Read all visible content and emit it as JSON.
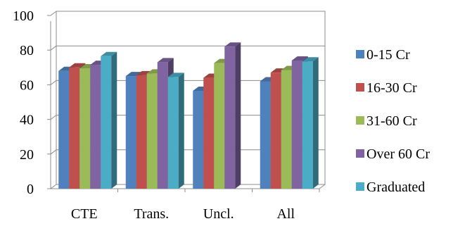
{
  "chart_data": {
    "type": "bar",
    "categories": [
      "CTE",
      "Trans.",
      "Uncl.",
      "All"
    ],
    "series": [
      {
        "name": "0-15 Cr",
        "color": "#4F81BD",
        "values": [
          68,
          65,
          56.5,
          62
        ]
      },
      {
        "name": "16-30 Cr",
        "color": "#C0504D",
        "values": [
          70,
          65.5,
          64,
          67
        ]
      },
      {
        "name": "31-60 Cr",
        "color": "#9BBB59",
        "values": [
          69.5,
          66.5,
          72.5,
          68.5
        ]
      },
      {
        "name": "Over 60 Cr",
        "color": "#8064A2",
        "values": [
          71.5,
          73,
          82,
          74
        ]
      },
      {
        "name": "Graduated",
        "color": "#4BACC6",
        "values": [
          76.5,
          64.5,
          null,
          73.5
        ]
      }
    ],
    "ylim": [
      0,
      100
    ],
    "yticks": [
      0,
      20,
      40,
      60,
      80,
      100
    ],
    "grid": true,
    "legend": "right",
    "style": "3d-clustered-column"
  }
}
